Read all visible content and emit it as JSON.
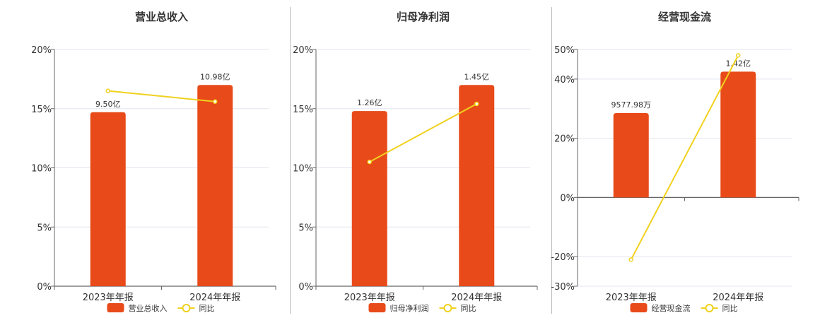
{
  "colors": {
    "bar": "#E84A19",
    "line": "#F0D11E",
    "grid": "#e3e5ef",
    "axis": "#666666"
  },
  "chart_data": [
    {
      "type": "bar",
      "title": "营业总收入",
      "categories": [
        "2023年年报",
        "2024年年报"
      ],
      "series": [
        {
          "name": "营业总收入",
          "type": "bar",
          "values": [
            9.5,
            10.98
          ],
          "labels": [
            "9.50亿",
            "10.98亿"
          ]
        },
        {
          "name": "同比",
          "type": "line",
          "values": [
            16.5,
            15.6
          ]
        }
      ],
      "y_ticks": [
        "20%",
        "15%",
        "10%",
        "5%",
        "0%"
      ],
      "y_tick_values": [
        20,
        15,
        10,
        5,
        0
      ],
      "ylim": [
        0,
        20
      ],
      "bar_pct_heights": [
        14.7,
        17.0
      ],
      "legend": [
        "营业总收入",
        "同比"
      ],
      "grid": true
    },
    {
      "type": "bar",
      "title": "归母净利润",
      "categories": [
        "2023年年报",
        "2024年年报"
      ],
      "series": [
        {
          "name": "归母净利润",
          "type": "bar",
          "values": [
            1.26,
            1.45
          ],
          "labels": [
            "1.26亿",
            "1.45亿"
          ]
        },
        {
          "name": "同比",
          "type": "line",
          "values": [
            10.5,
            15.4
          ]
        }
      ],
      "y_ticks": [
        "20%",
        "15%",
        "10%",
        "5%",
        "0%"
      ],
      "y_tick_values": [
        20,
        15,
        10,
        5,
        0
      ],
      "ylim": [
        0,
        20
      ],
      "bar_pct_heights": [
        14.8,
        17.0
      ],
      "legend": [
        "归母净利润",
        "同比"
      ],
      "grid": true
    },
    {
      "type": "bar",
      "title": "经营现金流",
      "categories": [
        "2023年年报",
        "2024年年报"
      ],
      "series": [
        {
          "name": "经营现金流",
          "type": "bar",
          "values": [
            0.957798,
            1.42
          ],
          "labels": [
            "9577.98万",
            "1.42亿"
          ]
        },
        {
          "name": "同比",
          "type": "line",
          "values": [
            -21,
            48
          ]
        }
      ],
      "y_ticks": [
        "50%",
        "40%",
        "20%",
        "0%",
        "-20%",
        "-30%"
      ],
      "y_tick_values": [
        50,
        40,
        20,
        0,
        -20,
        -30
      ],
      "ylim": [
        -30,
        50
      ],
      "bar_pct_heights": [
        28.5,
        42.5
      ],
      "legend": [
        "经营现金流",
        "同比"
      ],
      "grid": true
    }
  ]
}
